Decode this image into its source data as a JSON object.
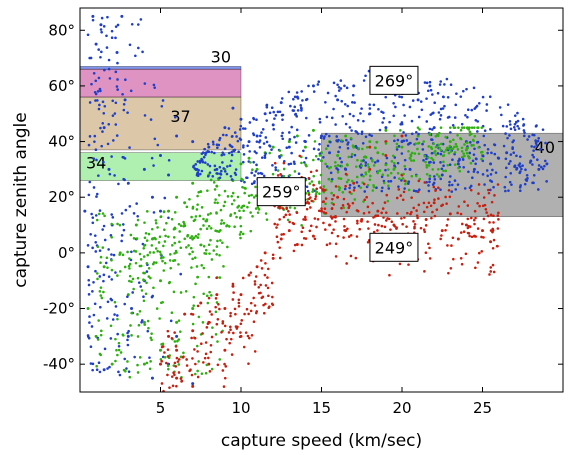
{
  "chart_data": {
    "type": "scatter",
    "title": "",
    "xlabel": "capture speed (km/sec)",
    "ylabel": "capture zenith angle",
    "xlim": [
      0,
      30
    ],
    "ylim": [
      -50,
      88
    ],
    "grid": false,
    "x_ticks": [
      {
        "value": 5,
        "label": "5"
      },
      {
        "value": 10,
        "label": "10"
      },
      {
        "value": 15,
        "label": "15"
      },
      {
        "value": 20,
        "label": "20"
      },
      {
        "value": 25,
        "label": "25"
      }
    ],
    "y_ticks": [
      {
        "value": 80,
        "label": "80°"
      },
      {
        "value": 60,
        "label": "60°"
      },
      {
        "value": 40,
        "label": "40°"
      },
      {
        "value": 20,
        "label": "20°"
      },
      {
        "value": 0,
        "label": "0°"
      },
      {
        "value": -20,
        "label": "-20°"
      },
      {
        "value": -40,
        "label": "-40°"
      }
    ],
    "series": [
      {
        "name": "",
        "color": "#1f3fc8",
        "approx_points": 1100,
        "points": [
          [
            0.3,
            15
          ],
          [
            0.5,
            -5
          ],
          [
            0.8,
            85
          ],
          [
            1.0,
            75
          ],
          [
            1.3,
            82
          ],
          [
            1.5,
            45
          ],
          [
            1.8,
            30
          ],
          [
            2.0,
            10
          ],
          [
            2.3,
            72
          ],
          [
            2.6,
            85
          ],
          [
            2.8,
            55
          ],
          [
            3.0,
            25
          ],
          [
            3.2,
            -20
          ],
          [
            3.5,
            5
          ],
          [
            4.0,
            30
          ],
          [
            4.5,
            20
          ],
          [
            5.0,
            35
          ],
          [
            5.5,
            28
          ],
          [
            6.0,
            42
          ],
          [
            7.0,
            40
          ],
          [
            8.0,
            38
          ],
          [
            8.5,
            30
          ],
          [
            9.0,
            45
          ],
          [
            9.5,
            52
          ],
          [
            10.0,
            48
          ],
          [
            10.5,
            40
          ],
          [
            11.0,
            42
          ],
          [
            11.5,
            50
          ],
          [
            12.0,
            46
          ],
          [
            12.5,
            54
          ],
          [
            13.0,
            38
          ],
          [
            13.5,
            56
          ],
          [
            14.0,
            40
          ],
          [
            14.5,
            60
          ],
          [
            15.0,
            42
          ],
          [
            15.5,
            36
          ],
          [
            16.0,
            55
          ],
          [
            16.5,
            30
          ],
          [
            17.0,
            60
          ],
          [
            17.5,
            28
          ],
          [
            18.0,
            50
          ],
          [
            18.5,
            33
          ],
          [
            19.0,
            45
          ],
          [
            19.5,
            62
          ],
          [
            20.0,
            40
          ],
          [
            20.5,
            30
          ],
          [
            21.0,
            55
          ],
          [
            21.5,
            35
          ],
          [
            22.0,
            45
          ],
          [
            22.5,
            28
          ],
          [
            23.0,
            38
          ],
          [
            23.5,
            32
          ],
          [
            24.0,
            40
          ],
          [
            24.5,
            30
          ],
          [
            25.0,
            35
          ],
          [
            25.5,
            32
          ],
          [
            26.0,
            34
          ],
          [
            26.5,
            36
          ],
          [
            27.0,
            31
          ],
          [
            28.0,
            33
          ],
          [
            28.5,
            30
          ],
          [
            29.0,
            32
          ],
          [
            5.0,
            15
          ],
          [
            4.0,
            -10
          ],
          [
            3.0,
            -30
          ],
          [
            1.5,
            -42
          ],
          [
            5.5,
            -40
          ],
          [
            6.0,
            -30
          ],
          [
            7.0,
            -47
          ],
          [
            4.5,
            -45
          ]
        ]
      },
      {
        "name": "",
        "color": "#2fb010",
        "approx_points": 750,
        "points": [
          [
            0.5,
            -20
          ],
          [
            1.0,
            -30
          ],
          [
            1.5,
            -5
          ],
          [
            2.0,
            -40
          ],
          [
            2.5,
            0
          ],
          [
            3.0,
            -15
          ],
          [
            3.5,
            10
          ],
          [
            4.0,
            -25
          ],
          [
            4.5,
            5
          ],
          [
            5.0,
            -35
          ],
          [
            5.5,
            15
          ],
          [
            6.0,
            20
          ],
          [
            6.5,
            18
          ],
          [
            7.0,
            25
          ],
          [
            7.5,
            22
          ],
          [
            8.0,
            28
          ],
          [
            8.5,
            24
          ],
          [
            9.0,
            30
          ],
          [
            9.5,
            26
          ],
          [
            10.0,
            32
          ],
          [
            10.5,
            34
          ],
          [
            11.0,
            30
          ],
          [
            11.5,
            36
          ],
          [
            12.0,
            38
          ],
          [
            12.5,
            35
          ],
          [
            13.0,
            40
          ],
          [
            13.5,
            42
          ],
          [
            14.0,
            38
          ],
          [
            14.5,
            44
          ],
          [
            15.0,
            36
          ],
          [
            15.5,
            40
          ],
          [
            16.0,
            35
          ],
          [
            16.5,
            42
          ],
          [
            17.0,
            38
          ],
          [
            17.5,
            33
          ],
          [
            18.0,
            40
          ],
          [
            18.5,
            36
          ],
          [
            19.0,
            44
          ],
          [
            19.5,
            30
          ],
          [
            20.0,
            38
          ],
          [
            20.5,
            34
          ],
          [
            21.0,
            42
          ],
          [
            22.0,
            36
          ],
          [
            23.0,
            40
          ],
          [
            24.0,
            37
          ],
          [
            25.0,
            35
          ],
          [
            5.0,
            -10
          ],
          [
            6.0,
            -25
          ],
          [
            7.0,
            -20
          ],
          [
            4.0,
            -40
          ]
        ]
      },
      {
        "name": "",
        "color": "#c82010",
        "approx_points": 650,
        "points": [
          [
            5.0,
            -40
          ],
          [
            5.5,
            -30
          ],
          [
            6.0,
            -35
          ],
          [
            6.5,
            -22
          ],
          [
            7.0,
            -28
          ],
          [
            7.5,
            -18
          ],
          [
            8.0,
            -25
          ],
          [
            8.5,
            -15
          ],
          [
            9.0,
            -20
          ],
          [
            9.5,
            -12
          ],
          [
            10.0,
            -15
          ],
          [
            10.5,
            -8
          ],
          [
            11.0,
            -5
          ],
          [
            11.5,
            0
          ],
          [
            12.0,
            -2
          ],
          [
            12.5,
            5
          ],
          [
            13.0,
            8
          ],
          [
            13.5,
            3
          ],
          [
            14.0,
            12
          ],
          [
            14.5,
            6
          ],
          [
            15.0,
            15
          ],
          [
            15.5,
            10
          ],
          [
            16.0,
            20
          ],
          [
            16.5,
            8
          ],
          [
            17.0,
            25
          ],
          [
            17.5,
            12
          ],
          [
            18.0,
            30
          ],
          [
            18.5,
            15
          ],
          [
            19.0,
            35
          ],
          [
            19.5,
            10
          ],
          [
            20.0,
            28
          ],
          [
            20.5,
            6
          ],
          [
            21.0,
            22
          ],
          [
            21.5,
            12
          ],
          [
            22.0,
            18
          ],
          [
            22.5,
            8
          ],
          [
            23.0,
            14
          ],
          [
            23.5,
            5
          ],
          [
            24.0,
            10
          ],
          [
            24.5,
            6
          ],
          [
            25.0,
            8
          ],
          [
            25.5,
            4
          ],
          [
            19.0,
            40
          ],
          [
            20.0,
            42
          ],
          [
            18.0,
            38
          ],
          [
            6.0,
            -45
          ],
          [
            7.0,
            -48
          ],
          [
            8.0,
            -40
          ],
          [
            9.0,
            -35
          ],
          [
            10.0,
            -30
          ]
        ]
      }
    ],
    "shaded_regions": [
      {
        "label": "30",
        "x": [
          0,
          10
        ],
        "y": [
          66,
          67
        ],
        "color": "#2e4fe0",
        "alpha": 0.6
      },
      {
        "label": "37",
        "x": [
          0,
          10
        ],
        "y": [
          37,
          56
        ],
        "color": "#c09a60",
        "alpha": 0.55
      },
      {
        "label": "",
        "x": [
          0,
          10
        ],
        "y": [
          56,
          66
        ],
        "color": "#c23a90",
        "alpha": 0.55
      },
      {
        "label": "34",
        "x": [
          0,
          10
        ],
        "y": [
          26,
          36
        ],
        "color": "#60e060",
        "alpha": 0.5
      },
      {
        "label": "40",
        "x": [
          15,
          30
        ],
        "y": [
          13,
          43
        ],
        "color": "#707070",
        "alpha": 0.55
      }
    ],
    "annotations": [
      {
        "text": "269°",
        "x": 19.5,
        "y": 62
      },
      {
        "text": "259°",
        "x": 12.5,
        "y": 22
      },
      {
        "text": "249°",
        "x": 19.5,
        "y": 2
      }
    ]
  }
}
